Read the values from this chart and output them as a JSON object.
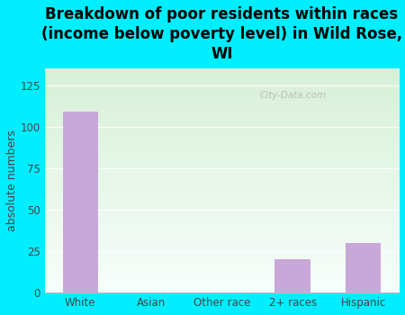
{
  "title": "Breakdown of poor residents within races\n(income below poverty level) in Wild Rose,\nWI",
  "categories": [
    "White",
    "Asian",
    "Other race",
    "2+ races",
    "Hispanic"
  ],
  "values": [
    109,
    0,
    0,
    20,
    30
  ],
  "bar_color": "#c8a8d8",
  "ylabel": "absolute numbers",
  "ylim": [
    0,
    135
  ],
  "yticks": [
    0,
    25,
    50,
    75,
    100,
    125
  ],
  "background_outer": "#00eeff",
  "grad_top_left": "#edfaed",
  "grad_top_right": "#d8f2e8",
  "grad_bot_left": "#f0faf5",
  "grad_bot_right": "#e8f8f5",
  "watermark": "City-Data.com",
  "title_fontsize": 12,
  "ylabel_fontsize": 9,
  "tick_fontsize": 8.5
}
